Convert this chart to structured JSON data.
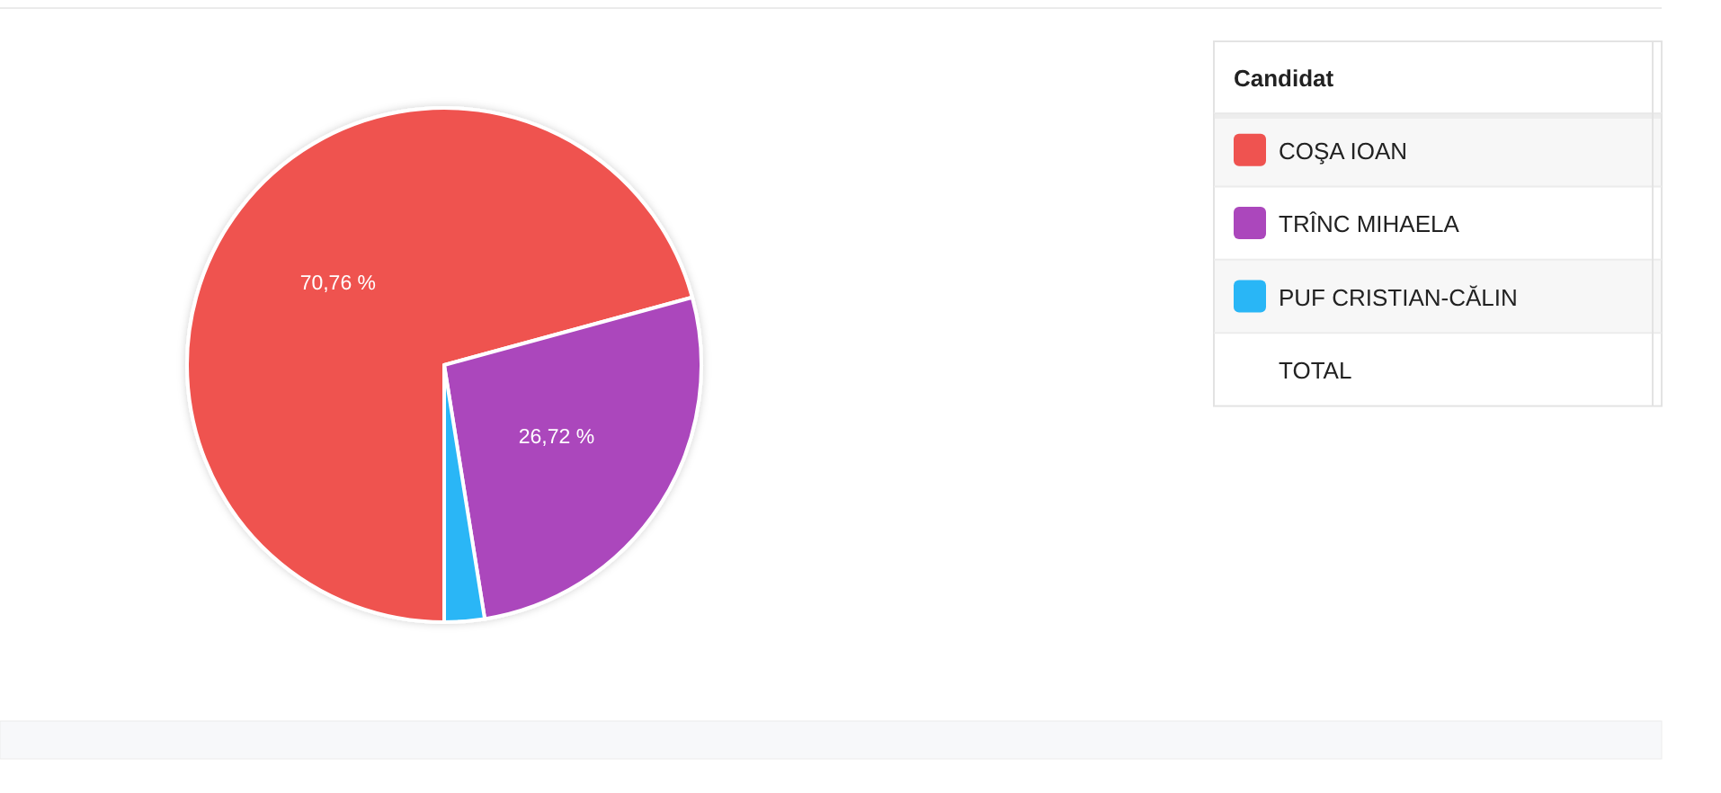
{
  "chart_data": {
    "type": "pie",
    "categories": [
      "COŞA IOAN",
      "TRÎNC MIHAELA",
      "PUF CRISTIAN-CĂLIN"
    ],
    "values": [
      70.76,
      26.72,
      2.52
    ],
    "colors": [
      "#ef5350",
      "#ab47bc",
      "#29b6f6"
    ],
    "value_labels": [
      "70,76 %",
      "26,72 %",
      null
    ],
    "legend": "right",
    "legend_title": "Candidat",
    "annotations": [
      "TOTAL"
    ]
  }
}
